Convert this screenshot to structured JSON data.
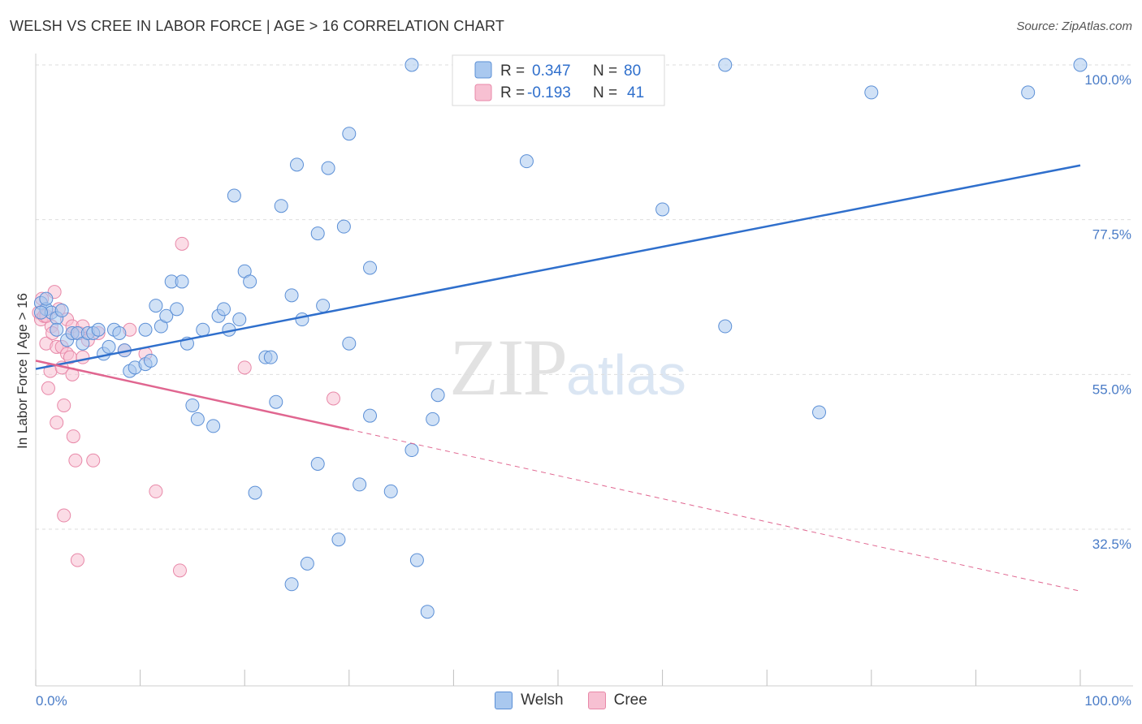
{
  "title": "WELSH VS CREE IN LABOR FORCE | AGE > 16 CORRELATION CHART",
  "source": "Source: ZipAtlas.com",
  "watermark": {
    "zip": "ZIP",
    "atlas": "atlas"
  },
  "colors": {
    "welsh_fill": "#a9c8ef",
    "welsh_stroke": "#5b8fd6",
    "welsh_line": "#2f6fcc",
    "cree_fill": "#f7c0d2",
    "cree_stroke": "#e888a8",
    "cree_line": "#e06690",
    "tick": "#4a7cc7"
  },
  "legend": {
    "welsh": {
      "r_label": "R =",
      "r_value": "0.347",
      "n_label": "N =",
      "n_value": "80"
    },
    "cree": {
      "r_label": "R =",
      "r_value": "-0.193",
      "n_label": "N =",
      "n_value": "41"
    }
  },
  "chart_data": {
    "type": "scatter",
    "title": "WELSH VS CREE IN LABOR FORCE | AGE > 16 CORRELATION CHART",
    "xlabel": "",
    "ylabel": "In Labor Force | Age > 16",
    "xlim": [
      0,
      100
    ],
    "ylim": [
      12,
      102
    ],
    "x_tick_labels": [
      "0.0%",
      "100.0%"
    ],
    "y_ticks": [
      32.5,
      55.0,
      77.5,
      100.0
    ],
    "y_tick_labels": [
      "32.5%",
      "55.0%",
      "77.5%",
      "100.0%"
    ],
    "grid": true,
    "legend_position": "top-center",
    "series": [
      {
        "name": "Welsh",
        "r": 0.347,
        "n": 80,
        "trend": {
          "x0": 0,
          "y0": 55.8,
          "x1": 100,
          "y1": 85.4,
          "style": "solid"
        },
        "points": [
          [
            0.5,
            65.4
          ],
          [
            1.0,
            64.5
          ],
          [
            1.5,
            64.0
          ],
          [
            2.0,
            63.2
          ],
          [
            2.5,
            64.3
          ],
          [
            3.0,
            60.0
          ],
          [
            3.5,
            61.0
          ],
          [
            4.0,
            61.0
          ],
          [
            4.5,
            59.5
          ],
          [
            5.0,
            61.0
          ],
          [
            5.5,
            61.0
          ],
          [
            6.0,
            61.5
          ],
          [
            6.5,
            58.0
          ],
          [
            7.0,
            59.0
          ],
          [
            7.5,
            61.5
          ],
          [
            8.0,
            61.0
          ],
          [
            8.5,
            58.5
          ],
          [
            9.0,
            55.5
          ],
          [
            9.5,
            56.0
          ],
          [
            10.5,
            56.5
          ],
          [
            10.5,
            61.5
          ],
          [
            11.0,
            57.0
          ],
          [
            11.5,
            65.0
          ],
          [
            12.0,
            62.0
          ],
          [
            12.5,
            63.5
          ],
          [
            13.0,
            68.5
          ],
          [
            13.5,
            64.5
          ],
          [
            14.0,
            68.5
          ],
          [
            14.5,
            59.5
          ],
          [
            15.0,
            50.5
          ],
          [
            15.5,
            48.5
          ],
          [
            16.0,
            61.5
          ],
          [
            17.0,
            47.5
          ],
          [
            17.5,
            63.5
          ],
          [
            18.0,
            64.5
          ],
          [
            18.5,
            61.5
          ],
          [
            19.0,
            81.0
          ],
          [
            19.5,
            63.0
          ],
          [
            20.0,
            70.0
          ],
          [
            20.5,
            68.5
          ],
          [
            21.0,
            37.8
          ],
          [
            22.0,
            57.5
          ],
          [
            22.5,
            57.5
          ],
          [
            23.0,
            51.0
          ],
          [
            23.5,
            79.5
          ],
          [
            24.5,
            24.5
          ],
          [
            24.5,
            66.5
          ],
          [
            25.0,
            85.5
          ],
          [
            25.5,
            63.0
          ],
          [
            26.0,
            27.5
          ],
          [
            27.0,
            42.0
          ],
          [
            27.0,
            75.5
          ],
          [
            27.5,
            65.0
          ],
          [
            28.0,
            85.0
          ],
          [
            29.0,
            31.0
          ],
          [
            29.5,
            76.5
          ],
          [
            30.0,
            59.5
          ],
          [
            30.0,
            90.0
          ],
          [
            31.0,
            39.0
          ],
          [
            32.0,
            70.5
          ],
          [
            32.0,
            49.0
          ],
          [
            34.0,
            38.0
          ],
          [
            36.0,
            44.0
          ],
          [
            36.0,
            100.0
          ],
          [
            36.5,
            28.0
          ],
          [
            37.5,
            20.5
          ],
          [
            38.0,
            48.5
          ],
          [
            38.5,
            52.0
          ],
          [
            41.0,
            100.0
          ],
          [
            47.0,
            86.0
          ],
          [
            60.0,
            79.0
          ],
          [
            66.0,
            62.0
          ],
          [
            66.0,
            100.0
          ],
          [
            75.0,
            49.5
          ],
          [
            80.0,
            96.0
          ],
          [
            95.0,
            96.0
          ],
          [
            100.0,
            100.0
          ],
          [
            1.0,
            66.0
          ],
          [
            0.5,
            64.0
          ],
          [
            2.0,
            61.5
          ]
        ]
      },
      {
        "name": "Cree",
        "r": -0.193,
        "n": 41,
        "trend": {
          "x0": 0,
          "y0": 57.0,
          "x1": 30,
          "y1": 47.0,
          "style": "solid",
          "extended_to": {
            "x": 100,
            "y": 23.5
          },
          "extended_style": "dashed"
        },
        "points": [
          [
            0.3,
            64.0
          ],
          [
            0.5,
            63.0
          ],
          [
            0.6,
            66.0
          ],
          [
            0.8,
            63.5
          ],
          [
            1.0,
            59.5
          ],
          [
            1.2,
            53.0
          ],
          [
            1.4,
            55.5
          ],
          [
            1.5,
            62.0
          ],
          [
            1.6,
            61.0
          ],
          [
            1.8,
            67.0
          ],
          [
            2.0,
            59.0
          ],
          [
            2.0,
            48.0
          ],
          [
            2.2,
            64.5
          ],
          [
            2.5,
            59.0
          ],
          [
            2.5,
            56.0
          ],
          [
            2.7,
            50.5
          ],
          [
            2.7,
            34.5
          ],
          [
            3.0,
            58.0
          ],
          [
            3.0,
            63.0
          ],
          [
            3.3,
            57.5
          ],
          [
            3.5,
            61.0
          ],
          [
            3.5,
            55.0
          ],
          [
            3.5,
            62.0
          ],
          [
            3.6,
            46.0
          ],
          [
            3.8,
            42.5
          ],
          [
            4.0,
            28.0
          ],
          [
            4.2,
            61.0
          ],
          [
            4.5,
            57.5
          ],
          [
            4.5,
            62.0
          ],
          [
            5.0,
            60.0
          ],
          [
            5.5,
            42.5
          ],
          [
            6.0,
            61.0
          ],
          [
            8.5,
            58.5
          ],
          [
            9.0,
            61.5
          ],
          [
            10.5,
            58.0
          ],
          [
            11.5,
            38.0
          ],
          [
            13.8,
            26.5
          ],
          [
            14.0,
            74.0
          ],
          [
            20.0,
            56.0
          ],
          [
            28.5,
            51.5
          ],
          [
            1.0,
            63.5
          ]
        ]
      }
    ]
  }
}
